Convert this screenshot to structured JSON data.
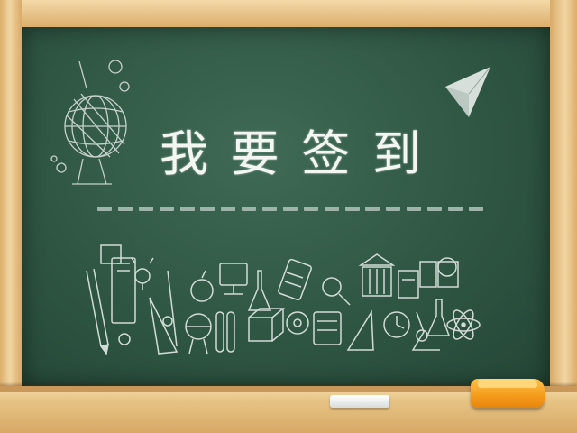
{
  "board": {
    "title_chars": [
      "我",
      "要",
      "签",
      "到"
    ]
  },
  "icons": [
    "globe-icon",
    "paper-plane-icon",
    "school-supplies-doodle-icon",
    "chalk-icon",
    "eraser-icon"
  ],
  "colors": {
    "board": "#2f5643",
    "frame": "#e2b87a",
    "chalk_text": "#f4f6f2",
    "eraser": "#f59d1d"
  }
}
